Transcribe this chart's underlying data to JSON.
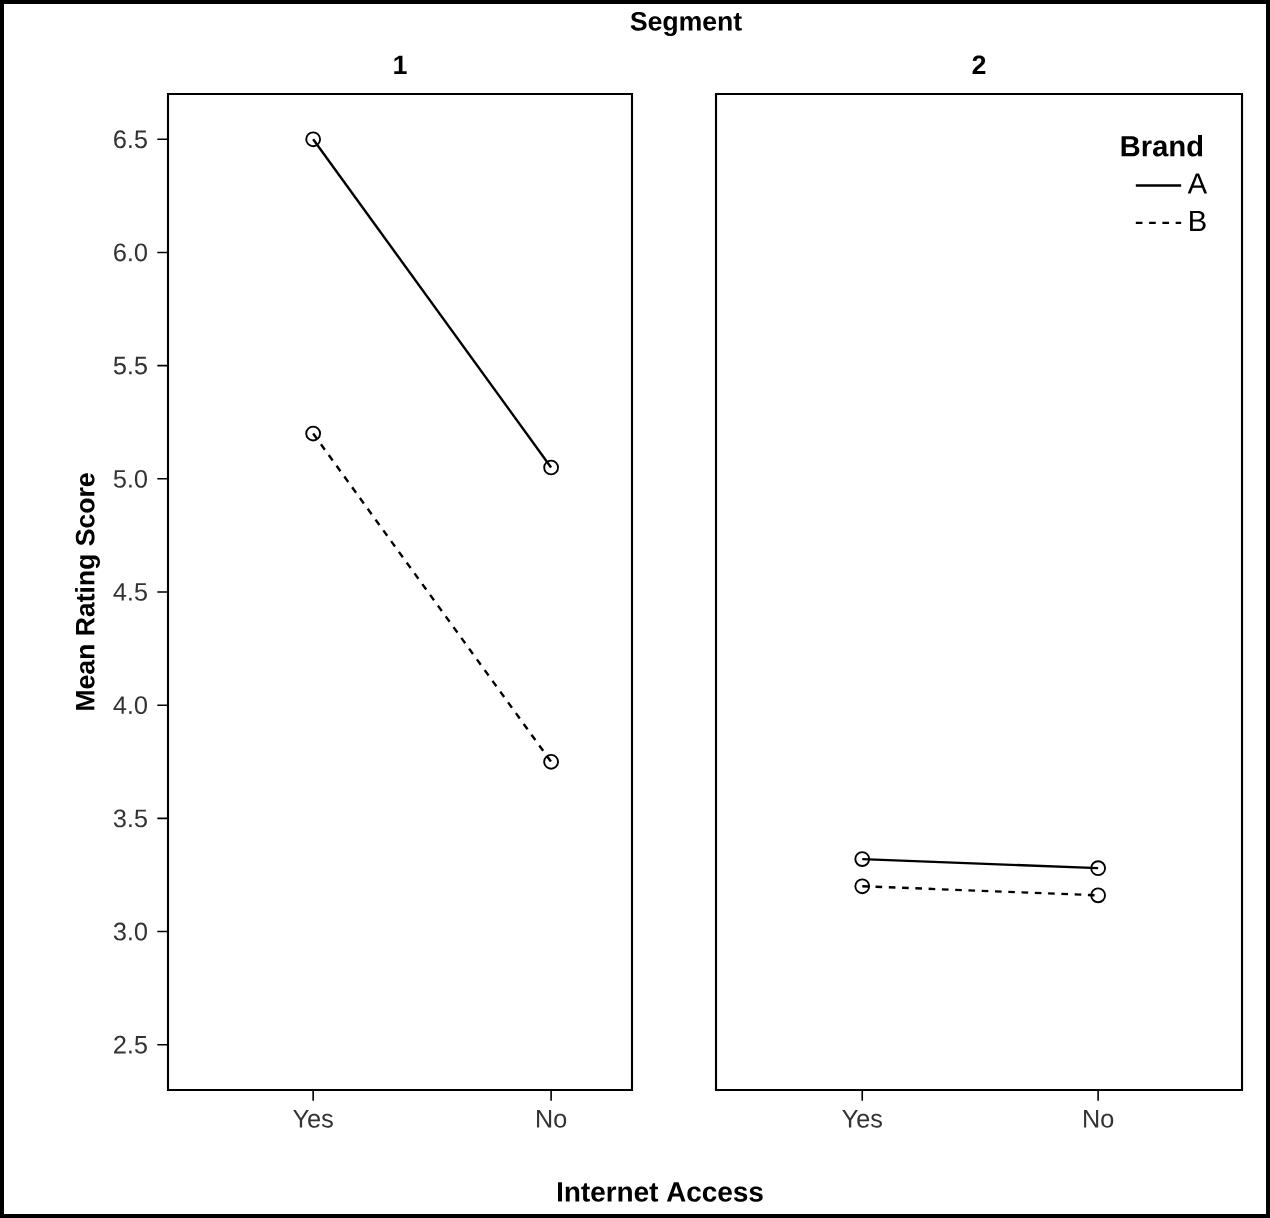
{
  "chart_data": [
    {
      "type": "line",
      "title": "1",
      "xlabel": "Internet Access",
      "ylabel": "Mean Rating Score",
      "annotations": [
        "Segment"
      ],
      "categories": [
        "Yes",
        "No"
      ],
      "ylim": [
        2.3,
        6.7
      ],
      "yticks": [
        {
          "value": 2.5,
          "label": "2.5"
        },
        {
          "value": 3,
          "label": "3.0"
        },
        {
          "value": 3.5,
          "label": "3.5"
        },
        {
          "value": 4,
          "label": "4.0"
        },
        {
          "value": 4.5,
          "label": "4.5"
        },
        {
          "value": 5,
          "label": "5.0"
        },
        {
          "value": 5.5,
          "label": "5.5"
        },
        {
          "value": 6,
          "label": "6.0"
        },
        {
          "value": 6.5,
          "label": "6.5"
        }
      ],
      "marker": "circle",
      "grid": false,
      "series": [
        {
          "color": "#000000",
          "line_style": "solid",
          "values": [
            6.5,
            5.05
          ]
        },
        {
          "color": "#000000",
          "line_style": "dashed",
          "values": [
            5.2,
            3.75
          ]
        }
      ]
    },
    {
      "type": "line",
      "title": "2",
      "categories": [
        "Yes",
        "No"
      ],
      "ylim": [
        2.3,
        6.7
      ],
      "tick_labels": "x",
      "marker": "circle",
      "grid": false,
      "legend": "top right",
      "legend_title": "Brand",
      "series": [
        {
          "name": "A",
          "color": "#000000",
          "line_style": "solid",
          "values": [
            3.32,
            3.28
          ]
        },
        {
          "name": "B",
          "color": "#000000",
          "line_style": "dashed",
          "values": [
            3.2,
            3.16
          ]
        }
      ]
    }
  ]
}
